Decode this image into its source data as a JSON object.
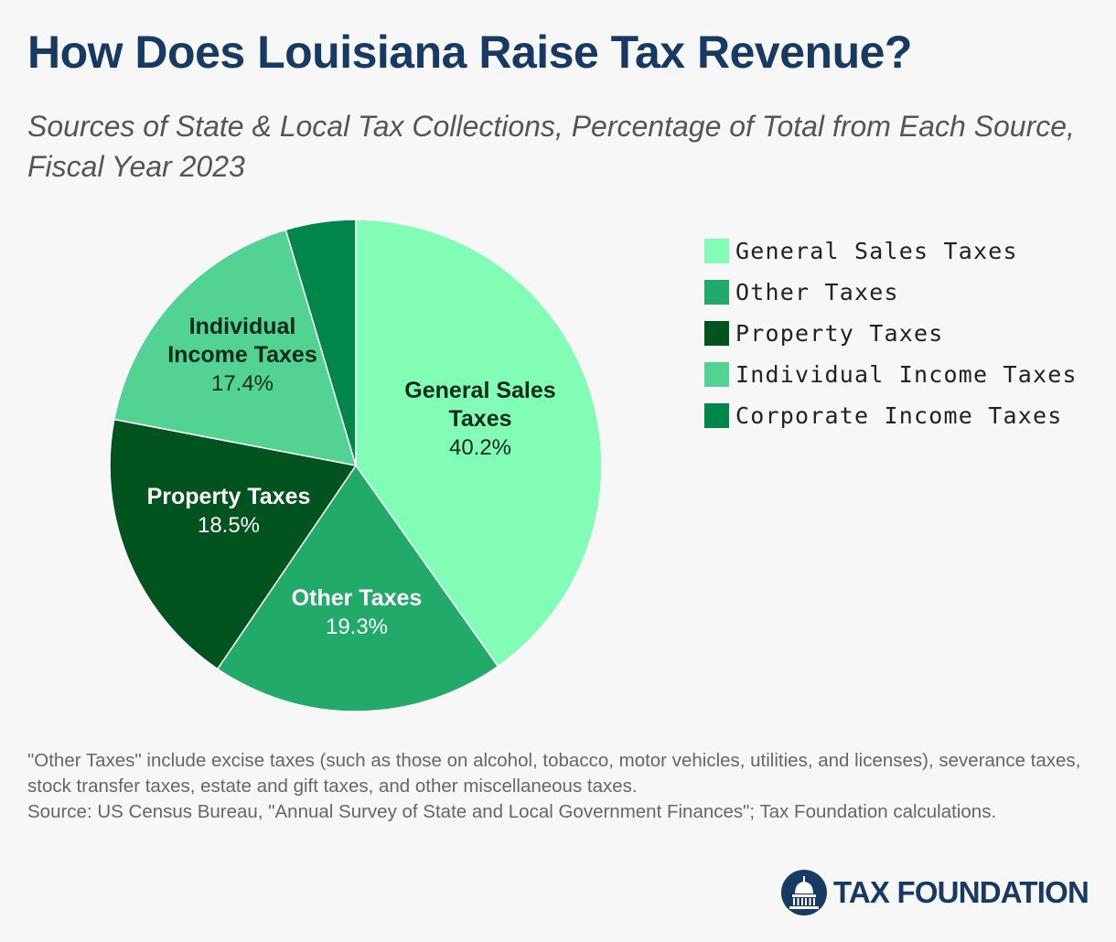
{
  "title": "How Does Louisiana Raise Tax Revenue?",
  "subtitle": "Sources of State & Local Tax Collections, Percentage of Total from Each Source, Fiscal Year 2023",
  "chart_data": {
    "type": "pie",
    "title": "How Does Louisiana Raise Tax Revenue?",
    "subtitle": "Sources of State & Local Tax Collections, Percentage of Total from Each Source, Fiscal Year 2023",
    "unit": "%",
    "start_angle_deg": 0,
    "direction": "clockwise",
    "slices": [
      {
        "label": "General Sales Taxes",
        "value": 40.2,
        "value_label": "40.2%",
        "color": "#82fdb6",
        "label_color": "#0b2a1a",
        "label_lines": [
          "General Sales",
          "Taxes"
        ]
      },
      {
        "label": "Other Taxes",
        "value": 19.3,
        "value_label": "19.3%",
        "color": "#21aa6a",
        "label_color": "#ffffff",
        "label_lines": [
          "Other Taxes"
        ]
      },
      {
        "label": "Property Taxes",
        "value": 18.5,
        "value_label": "18.5%",
        "color": "#02541f",
        "label_color": "#ffffff",
        "label_lines": [
          "Property Taxes"
        ]
      },
      {
        "label": "Individual Income Taxes",
        "value": 17.4,
        "value_label": "17.4%",
        "color": "#52d393",
        "label_color": "#0b2a1a",
        "label_lines": [
          "Individual",
          "Income Taxes"
        ]
      },
      {
        "label": "Corporate Income Taxes",
        "value": 4.6,
        "value_label": "",
        "color": "#00854a",
        "label_color": "#ffffff",
        "label_lines": []
      }
    ],
    "legend": {
      "placement": "right",
      "entries": [
        "General Sales Taxes",
        "Other Taxes",
        "Property Taxes",
        "Individual Income Taxes",
        "Corporate Income Taxes"
      ]
    }
  },
  "notes": {
    "other_taxes": "\"Other Taxes\" include excise taxes (such as those on alcohol, tobacco, motor vehicles, utilities, and licenses), severance taxes, stock transfer taxes, estate and gift taxes, and other miscellaneous taxes.",
    "source": "Source: US Census Bureau, \"Annual Survey of State and Local Government Finances\"; Tax Foundation calculations."
  },
  "brand": {
    "name": "TAX FOUNDATION",
    "logo_icon": "capitol-dome-icon",
    "color": "#173a64"
  }
}
